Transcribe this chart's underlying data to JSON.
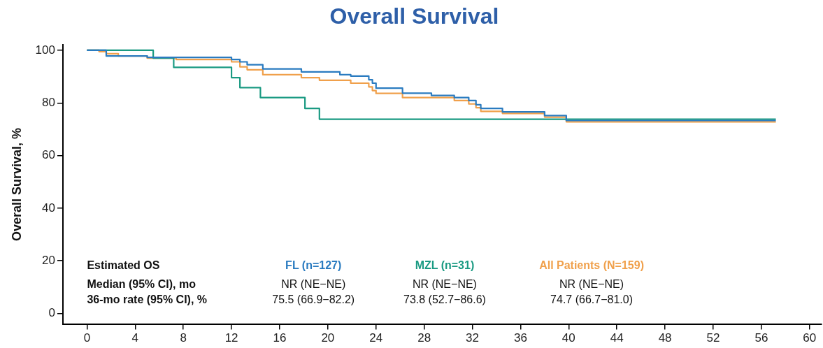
{
  "chart_data": {
    "type": "step",
    "title": "Overall Survival",
    "ylabel": "Overall Survival, %",
    "xlim": [
      -2,
      61
    ],
    "ylim": [
      -4,
      102
    ],
    "xticks": [
      0,
      4,
      8,
      12,
      16,
      20,
      24,
      28,
      32,
      36,
      40,
      44,
      48,
      52,
      56,
      60
    ],
    "yticks": [
      0,
      20,
      40,
      60,
      80,
      100
    ],
    "grid": false,
    "legend": false,
    "marker": "none",
    "line_style": "solid",
    "series": [
      {
        "name": "FL (n=127)",
        "color": "#2a7bc0",
        "x": [
          0,
          1.6,
          5.0,
          12.0,
          12.7,
          13.3,
          14.6,
          17.8,
          21.0,
          21.9,
          23.4,
          23.7,
          24.0,
          26.2,
          28.6,
          30.5,
          31.7,
          32.3,
          32.7,
          34.5,
          38.0,
          39.8,
          57.2
        ],
        "values": [
          100,
          97.8,
          97.3,
          96.5,
          95.6,
          94.5,
          92.9,
          91.8,
          90.7,
          90.2,
          88.8,
          87.5,
          85.6,
          83.7,
          82.8,
          82,
          80.9,
          79.3,
          77.9,
          76.6,
          75.2,
          73.3,
          73.3
        ]
      },
      {
        "name": "MZL (n=31)",
        "color": "#1a9a82",
        "x": [
          0,
          5.5,
          7.2,
          12.0,
          12.7,
          14.4,
          18.1,
          19.3,
          57.2
        ],
        "values": [
          100,
          97,
          93.5,
          89.6,
          85.8,
          82,
          77.9,
          73.8,
          73.8
        ]
      },
      {
        "name": "All Patients (N=159)",
        "color": "#f0a04b",
        "x": [
          0,
          1.0,
          1.6,
          2.6,
          5.0,
          7.4,
          12.0,
          12.7,
          13.3,
          14.6,
          17.8,
          19.3,
          21.9,
          23.4,
          23.7,
          24.0,
          26.2,
          30.5,
          31.7,
          32.3,
          32.7,
          34.5,
          38.0,
          39.8,
          57.2
        ],
        "values": [
          100,
          99.5,
          98.7,
          97.8,
          97,
          96.5,
          95.6,
          93.7,
          92.6,
          90.7,
          89.6,
          88.6,
          87.5,
          86.1,
          84.7,
          83.6,
          82,
          80.9,
          79.6,
          78.2,
          76.8,
          76,
          74.6,
          72.8,
          72.8
        ]
      }
    ],
    "annotations": [
      "Estimated OS",
      "Median (95% CI), mo",
      "36-mo rate (95% CI), %",
      "NR (NE−NE)",
      "NR (NE−NE)",
      "NR (NE−NE)",
      "75.5 (66.9−82.2)",
      "73.8 (52.7−86.6)",
      "74.7 (66.7−81.0)"
    ]
  }
}
